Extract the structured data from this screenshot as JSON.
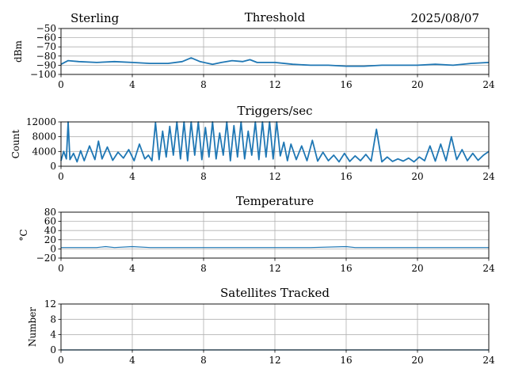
{
  "header": {
    "station": "Sterling",
    "date": "2025/08/07"
  },
  "colors": {
    "series": "#1f77b4",
    "grid": "#b0b0b0"
  },
  "chart_data": [
    {
      "type": "line",
      "title": "Threshold",
      "ylabel": "dBm",
      "xlim": [
        0,
        24
      ],
      "ylim": [
        -100,
        -50
      ],
      "x_ticks": [
        0,
        4,
        8,
        12,
        16,
        20,
        24
      ],
      "y_ticks": [
        -100,
        -90,
        -80,
        -70,
        -60,
        -50
      ],
      "grid": true,
      "series": [
        {
          "x": [
            0,
            0.4,
            1,
            2,
            3,
            4,
            5,
            6,
            6.8,
            7.3,
            7.8,
            8.5,
            9,
            9.6,
            10.2,
            10.6,
            11,
            12,
            13,
            14,
            15,
            16,
            17,
            18,
            19,
            20,
            21,
            22,
            23,
            24
          ],
          "values": [
            -89,
            -85,
            -86,
            -87,
            -86,
            -87,
            -88,
            -88,
            -86,
            -82,
            -86,
            -89,
            -87,
            -85,
            -86,
            -84,
            -87,
            -87,
            -89,
            -90,
            -90,
            -91,
            -91,
            -90,
            -90,
            -90,
            -89,
            -90,
            -88,
            -87
          ]
        }
      ]
    },
    {
      "type": "line",
      "title": "Triggers/sec",
      "ylabel": "Count",
      "xlim": [
        0,
        24
      ],
      "ylim": [
        0,
        12000
      ],
      "x_ticks": [
        0,
        4,
        8,
        12,
        16,
        20,
        24
      ],
      "y_ticks": [
        0,
        4000,
        8000,
        12000
      ],
      "grid": true,
      "series": [
        {
          "x": [
            0,
            0.15,
            0.3,
            0.4,
            0.5,
            0.7,
            0.9,
            1.1,
            1.3,
            1.6,
            1.9,
            2.1,
            2.3,
            2.6,
            2.9,
            3.2,
            3.5,
            3.8,
            4.1,
            4.4,
            4.7,
            4.9,
            5.1,
            5.3,
            5.5,
            5.7,
            5.9,
            6.1,
            6.3,
            6.5,
            6.7,
            6.9,
            7.1,
            7.3,
            7.5,
            7.7,
            7.9,
            8.1,
            8.3,
            8.5,
            8.7,
            8.9,
            9.1,
            9.3,
            9.5,
            9.7,
            9.9,
            10.1,
            10.3,
            10.5,
            10.7,
            10.9,
            11.1,
            11.3,
            11.5,
            11.7,
            11.9,
            12.1,
            12.3,
            12.5,
            12.7,
            12.9,
            13.2,
            13.5,
            13.8,
            14.1,
            14.4,
            14.7,
            15.0,
            15.3,
            15.6,
            15.9,
            16.2,
            16.5,
            16.8,
            17.1,
            17.4,
            17.7,
            18.0,
            18.3,
            18.6,
            18.9,
            19.2,
            19.5,
            19.8,
            20.1,
            20.4,
            20.7,
            21.0,
            21.3,
            21.6,
            21.9,
            22.2,
            22.5,
            22.8,
            23.1,
            23.4,
            23.7,
            24.0
          ],
          "values": [
            1500,
            4000,
            2000,
            12000,
            1800,
            3500,
            1200,
            4200,
            1500,
            5500,
            1800,
            6800,
            2000,
            5200,
            1600,
            3800,
            2200,
            4500,
            1500,
            6000,
            2000,
            3000,
            1500,
            11800,
            1800,
            9500,
            2500,
            10800,
            3000,
            12000,
            2000,
            12000,
            1500,
            12000,
            3000,
            12000,
            1800,
            10500,
            2500,
            12000,
            2000,
            9000,
            3000,
            12000,
            1500,
            11000,
            2500,
            12000,
            2000,
            9500,
            3000,
            12000,
            1800,
            12000,
            2500,
            12000,
            2000,
            12000,
            2800,
            6500,
            1500,
            6000,
            1800,
            5500,
            1500,
            7000,
            1400,
            3800,
            1500,
            3000,
            1200,
            3500,
            1300,
            2800,
            1500,
            3200,
            1400,
            10000,
            1200,
            2500,
            1300,
            2000,
            1400,
            2200,
            1200,
            2500,
            1500,
            5500,
            1400,
            6000,
            1500,
            8000,
            1800,
            4500,
            1500,
            3500,
            1600,
            3000,
            4000
          ]
        }
      ]
    },
    {
      "type": "line",
      "title": "Temperature",
      "ylabel": "°C",
      "xlim": [
        0,
        24
      ],
      "ylim": [
        -20,
        80
      ],
      "x_ticks": [
        0,
        4,
        8,
        12,
        16,
        20,
        24
      ],
      "y_ticks": [
        -20,
        0,
        20,
        40,
        60,
        80
      ],
      "grid": true,
      "series": [
        {
          "x": [
            0,
            2,
            2.5,
            3,
            4,
            5,
            6,
            8,
            10,
            12,
            14,
            16,
            16.5,
            18,
            20,
            22,
            24
          ],
          "values": [
            3,
            3,
            5,
            3,
            5,
            3,
            3,
            3,
            3,
            3,
            3,
            5,
            3,
            3,
            3,
            3,
            3
          ]
        }
      ]
    },
    {
      "type": "line",
      "title": "Satellites Tracked",
      "ylabel": "Number",
      "xlim": [
        0,
        24
      ],
      "ylim": [
        0,
        12
      ],
      "x_ticks": [
        0,
        4,
        8,
        12,
        16,
        20,
        24
      ],
      "y_ticks": [
        0,
        4,
        8,
        12
      ],
      "grid": true,
      "series": [
        {
          "x": [
            0,
            24
          ],
          "values": [
            0,
            0
          ]
        }
      ]
    }
  ]
}
